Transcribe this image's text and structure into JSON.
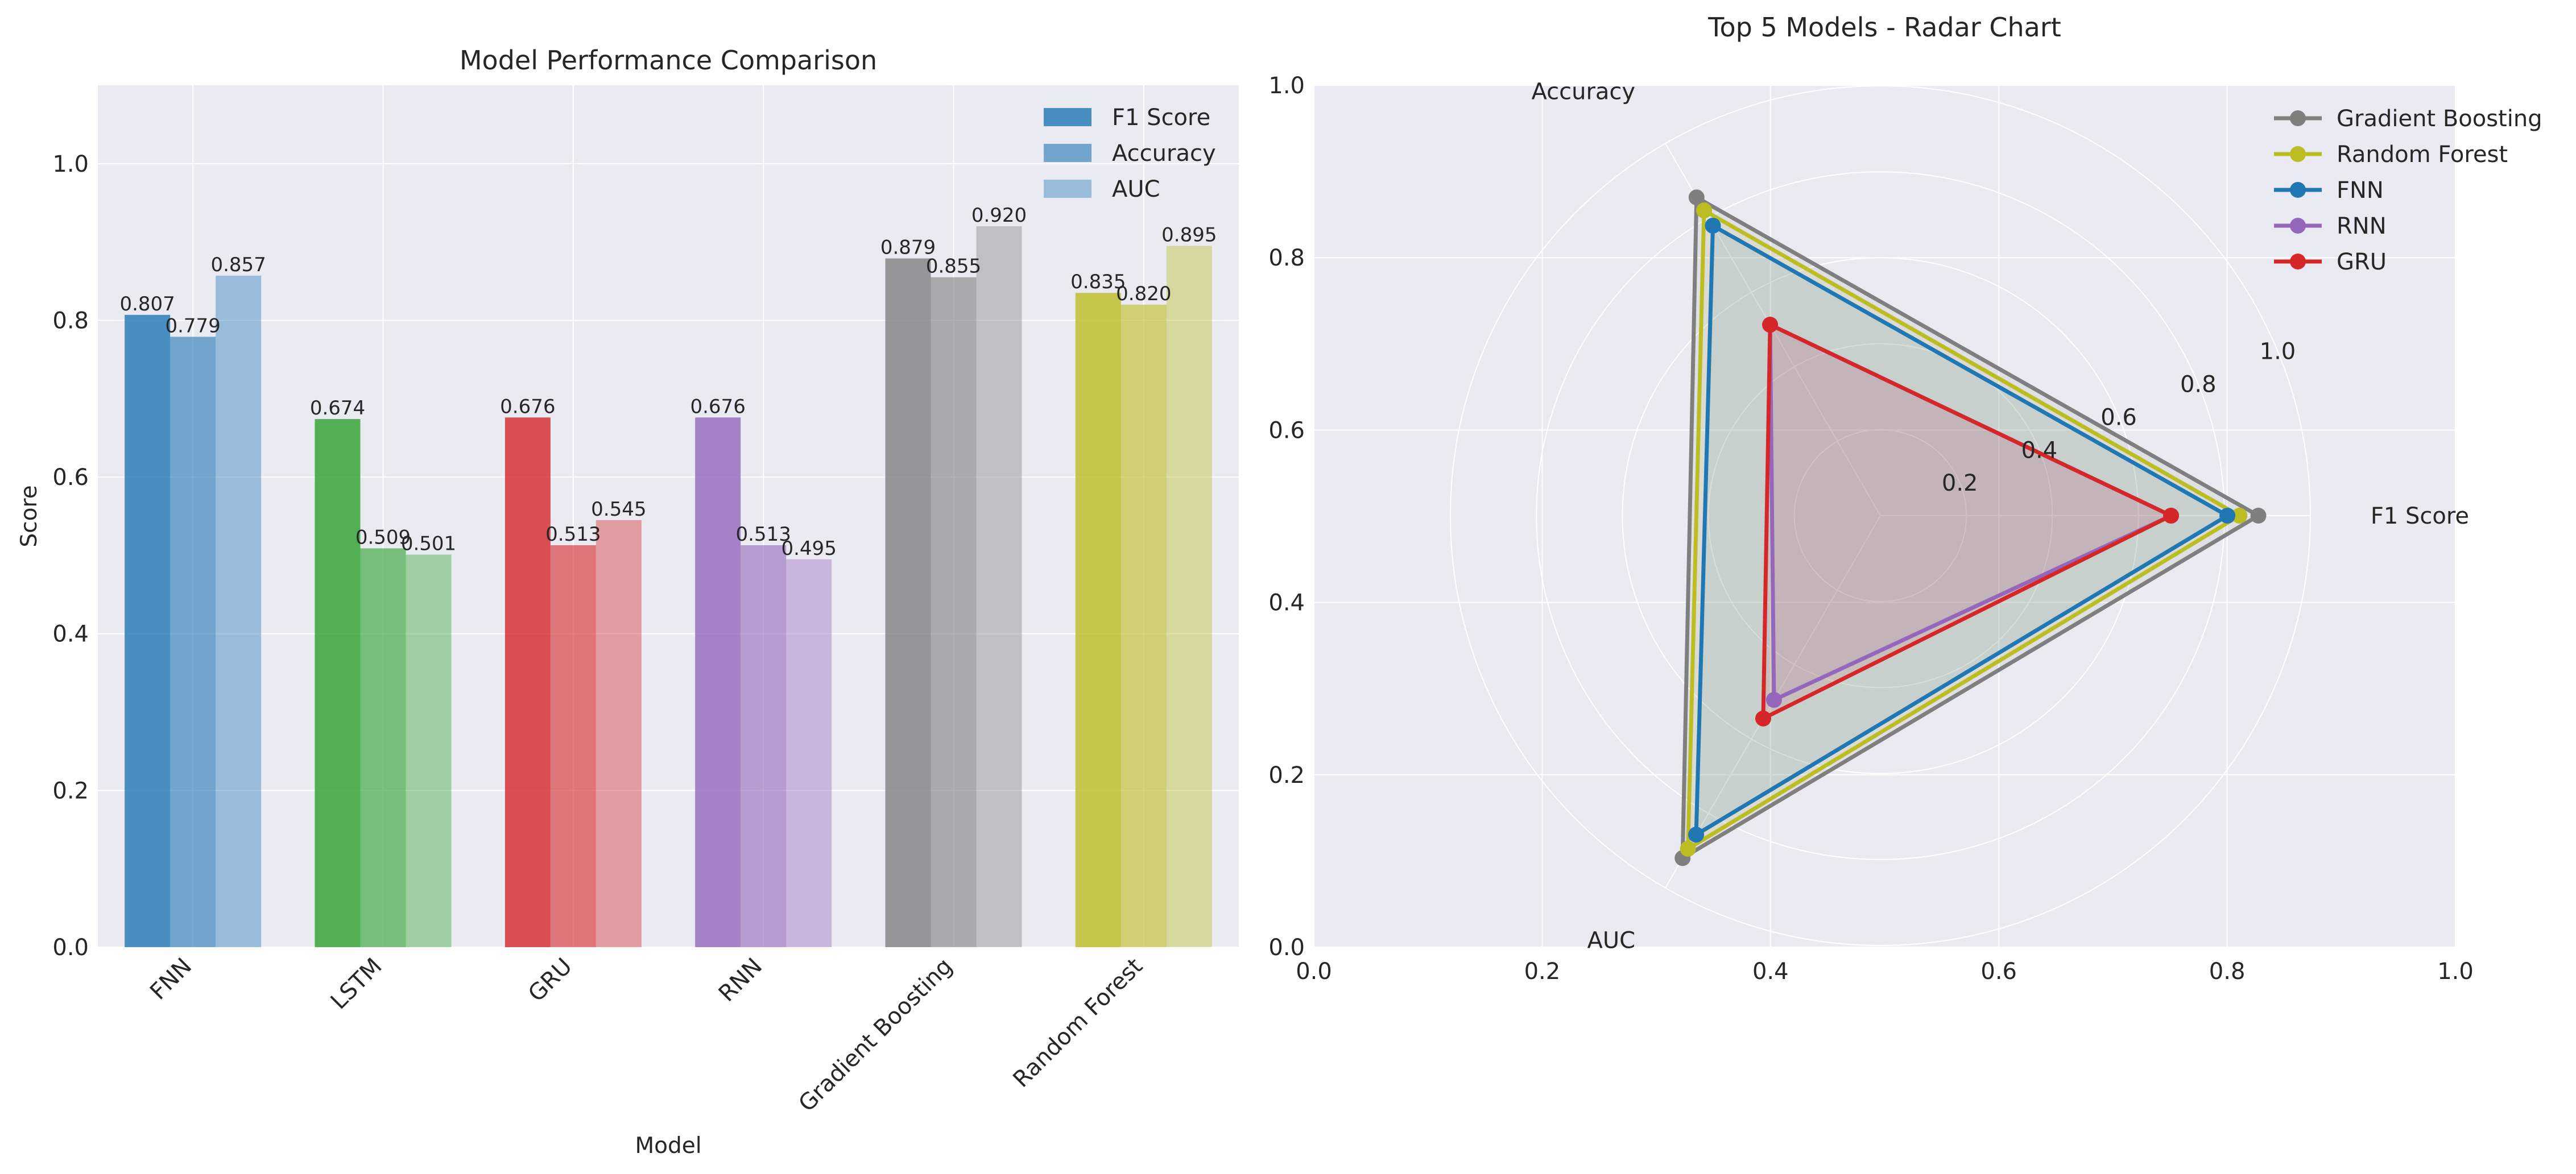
{
  "chart_data": [
    {
      "type": "bar",
      "title": "Model Performance Comparison",
      "xlabel": "Model",
      "ylabel": "Score",
      "ylim": [
        0,
        1.1
      ],
      "yticks": [
        "0.0",
        "0.2",
        "0.4",
        "0.6",
        "0.8",
        "1.0"
      ],
      "categories": [
        "FNN",
        "LSTM",
        "GRU",
        "RNN",
        "Gradient Boosting",
        "Random Forest"
      ],
      "category_colors": [
        "#1f77b4",
        "#2ca02c",
        "#d62728",
        "#9467bd",
        "#7f7f7f",
        "#bcbd22"
      ],
      "series": [
        {
          "name": "F1 Score",
          "values": [
            0.807,
            0.674,
            0.676,
            0.676,
            0.879,
            0.835
          ],
          "opacity": 0.8,
          "labels": [
            "0.807",
            "0.674",
            "0.676",
            "0.676",
            "0.879",
            "0.835"
          ]
        },
        {
          "name": "Accuracy",
          "values": [
            0.779,
            0.509,
            0.513,
            0.513,
            0.855,
            0.82
          ],
          "opacity": 0.6,
          "labels": [
            "0.779",
            "0.509",
            "0.513",
            "0.513",
            "0.855",
            "0.820"
          ]
        },
        {
          "name": "AUC",
          "values": [
            0.857,
            0.501,
            0.545,
            0.495,
            0.92,
            0.895
          ],
          "opacity": 0.4,
          "labels": [
            "0.857",
            "0.501",
            "0.545",
            "0.495",
            "0.920",
            "0.895"
          ]
        }
      ],
      "legend_position": "top-right",
      "grid": true
    },
    {
      "type": "radar",
      "title": "Top 5 Models - Radar Chart",
      "axes": [
        "F1 Score",
        "Accuracy",
        "AUC"
      ],
      "rlim": [
        0,
        1.0
      ],
      "rticks": [
        "0.2",
        "0.4",
        "0.6",
        "0.8",
        "1.0"
      ],
      "cartesian_ticks": [
        "0.0",
        "0.2",
        "0.4",
        "0.6",
        "0.8",
        "1.0"
      ],
      "series": [
        {
          "name": "Gradient Boosting",
          "color": "#7f7f7f",
          "values": [
            0.879,
            0.855,
            0.92
          ]
        },
        {
          "name": "Random Forest",
          "color": "#bcbd22",
          "values": [
            0.835,
            0.82,
            0.895
          ]
        },
        {
          "name": "FNN",
          "color": "#1f77b4",
          "values": [
            0.807,
            0.779,
            0.857
          ]
        },
        {
          "name": "RNN",
          "color": "#9467bd",
          "values": [
            0.676,
            0.513,
            0.495
          ]
        },
        {
          "name": "GRU",
          "color": "#d62728",
          "values": [
            0.676,
            0.513,
            0.545
          ]
        }
      ],
      "legend_position": "top-right",
      "grid": true
    }
  ]
}
